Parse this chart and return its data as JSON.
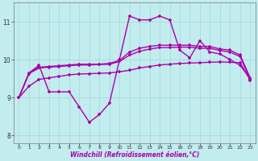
{
  "xlabel": "Windchill (Refroidissement éolien,°C)",
  "bg_color": "#c2ecee",
  "grid_color": "#aadde0",
  "line_color": "#aa00aa",
  "xlim": [
    -0.5,
    23.5
  ],
  "ylim": [
    7.8,
    11.5
  ],
  "yticks": [
    8,
    9,
    10,
    11
  ],
  "xticks": [
    0,
    1,
    2,
    3,
    4,
    5,
    6,
    7,
    8,
    9,
    10,
    11,
    12,
    13,
    14,
    15,
    16,
    17,
    18,
    19,
    20,
    21,
    22,
    23
  ],
  "line1_x": [
    0,
    1,
    2,
    3,
    4,
    5,
    6,
    7,
    8,
    9,
    10,
    11,
    12,
    13,
    14,
    15,
    16,
    17,
    18,
    19,
    20,
    21,
    22,
    23
  ],
  "line1_y": [
    9.0,
    9.65,
    9.85,
    9.15,
    9.15,
    9.15,
    8.75,
    8.35,
    8.55,
    8.85,
    10.0,
    11.15,
    11.05,
    11.05,
    11.15,
    11.05,
    10.25,
    10.05,
    10.5,
    10.2,
    10.15,
    10.0,
    9.85,
    9.5
  ],
  "line2_x": [
    0,
    1,
    2,
    3,
    4,
    5,
    6,
    7,
    8,
    9,
    10,
    11,
    12,
    13,
    14,
    15,
    16,
    17,
    18,
    19,
    20,
    21,
    22,
    23
  ],
  "line2_y": [
    9.0,
    9.65,
    9.8,
    9.82,
    9.84,
    9.86,
    9.88,
    9.88,
    9.88,
    9.9,
    9.98,
    10.2,
    10.3,
    10.35,
    10.38,
    10.38,
    10.38,
    10.38,
    10.35,
    10.35,
    10.28,
    10.25,
    10.12,
    9.52
  ],
  "line3_x": [
    0,
    1,
    2,
    3,
    4,
    5,
    6,
    7,
    8,
    9,
    10,
    11,
    12,
    13,
    14,
    15,
    16,
    17,
    18,
    19,
    20,
    21,
    22,
    23
  ],
  "line3_y": [
    9.0,
    9.63,
    9.78,
    9.8,
    9.82,
    9.84,
    9.86,
    9.86,
    9.87,
    9.88,
    9.95,
    10.12,
    10.22,
    10.28,
    10.32,
    10.32,
    10.33,
    10.33,
    10.3,
    10.3,
    10.24,
    10.2,
    10.08,
    9.48
  ],
  "line4_x": [
    0,
    1,
    2,
    3,
    4,
    5,
    6,
    7,
    8,
    9,
    10,
    11,
    12,
    13,
    14,
    15,
    16,
    17,
    18,
    19,
    20,
    21,
    22,
    23
  ],
  "line4_y": [
    9.0,
    9.3,
    9.48,
    9.52,
    9.56,
    9.6,
    9.62,
    9.63,
    9.64,
    9.65,
    9.68,
    9.72,
    9.78,
    9.82,
    9.86,
    9.88,
    9.9,
    9.91,
    9.92,
    9.93,
    9.94,
    9.93,
    9.92,
    9.46
  ]
}
